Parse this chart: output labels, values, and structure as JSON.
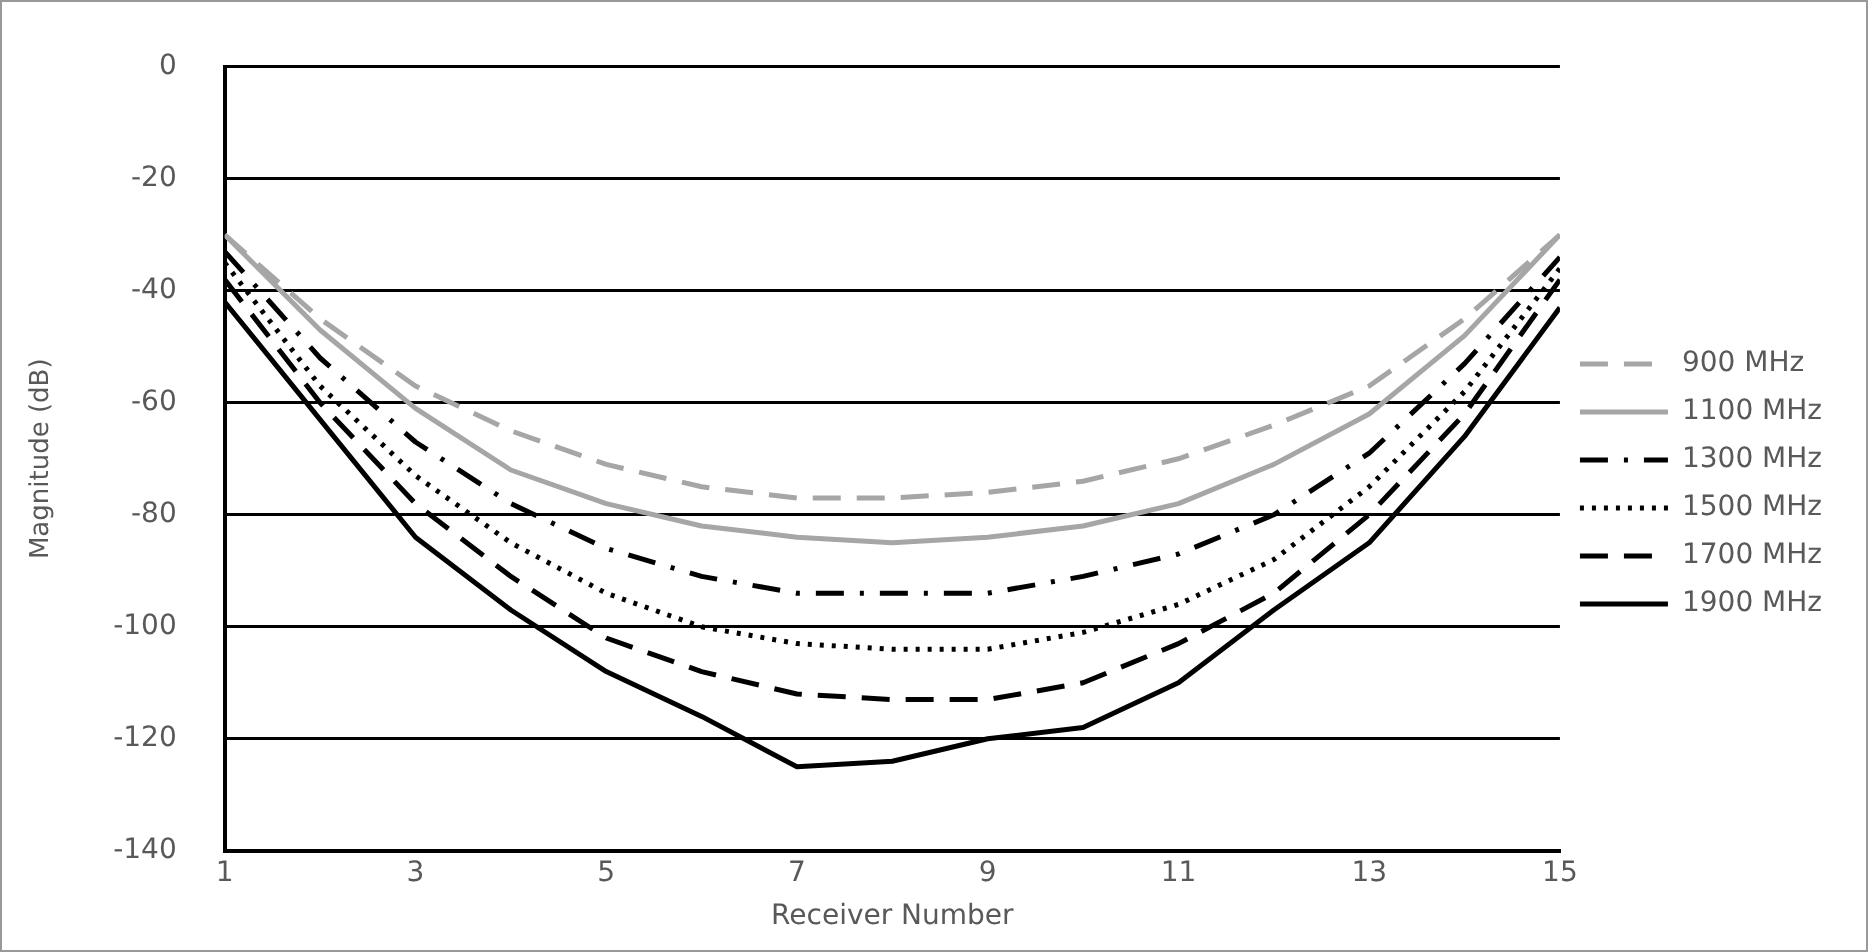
{
  "chart_data": {
    "type": "line",
    "xlabel": "Receiver Number",
    "ylabel": "Magnitude (dB)",
    "x": [
      1,
      2,
      3,
      4,
      5,
      6,
      7,
      8,
      9,
      10,
      11,
      12,
      13,
      14,
      15
    ],
    "xlim": [
      1,
      15
    ],
    "xticks": [
      1,
      3,
      5,
      7,
      9,
      11,
      13,
      15
    ],
    "ylim": [
      -140,
      0
    ],
    "yticks": [
      -140,
      -120,
      -100,
      -80,
      -60,
      -40,
      -20,
      0
    ],
    "grid": "y",
    "legend": "right",
    "marker": "none",
    "series": [
      {
        "name": "900 MHz",
        "color": "#a6a6a6",
        "line_style": "dashed",
        "values": [
          -30,
          -45,
          -57,
          -65,
          -71,
          -75,
          -77,
          -77,
          -76,
          -74,
          -70,
          -64,
          -57,
          -45,
          -30
        ]
      },
      {
        "name": "1100 MHz",
        "color": "#a6a6a6",
        "line_style": "solid",
        "values": [
          -30,
          -47,
          -61,
          -72,
          -78,
          -82,
          -84,
          -85,
          -84,
          -82,
          -78,
          -71,
          -62,
          -48,
          -30
        ]
      },
      {
        "name": "1300 MHz",
        "color": "#000000",
        "line_style": "dashdot",
        "values": [
          -33,
          -52,
          -67,
          -78,
          -86,
          -91,
          -94,
          -94,
          -94,
          -91,
          -87,
          -80,
          -69,
          -53,
          -34
        ]
      },
      {
        "name": "1500 MHz",
        "color": "#000000",
        "line_style": "dotted",
        "values": [
          -35,
          -57,
          -73,
          -85,
          -94,
          -100,
          -103,
          -104,
          -104,
          -101,
          -96,
          -88,
          -75,
          -58,
          -36
        ]
      },
      {
        "name": "1700 MHz",
        "color": "#000000",
        "line_style": "dashed",
        "values": [
          -38,
          -60,
          -78,
          -91,
          -102,
          -108,
          -112,
          -113,
          -113,
          -110,
          -103,
          -94,
          -80,
          -62,
          -38
        ]
      },
      {
        "name": "1900 MHz",
        "color": "#000000",
        "line_style": "solid",
        "values": [
          -42,
          -63,
          -84,
          -97,
          -108,
          -116,
          -125,
          -124,
          -120,
          -118,
          -110,
          -97,
          -85,
          -66,
          -43
        ]
      }
    ]
  }
}
